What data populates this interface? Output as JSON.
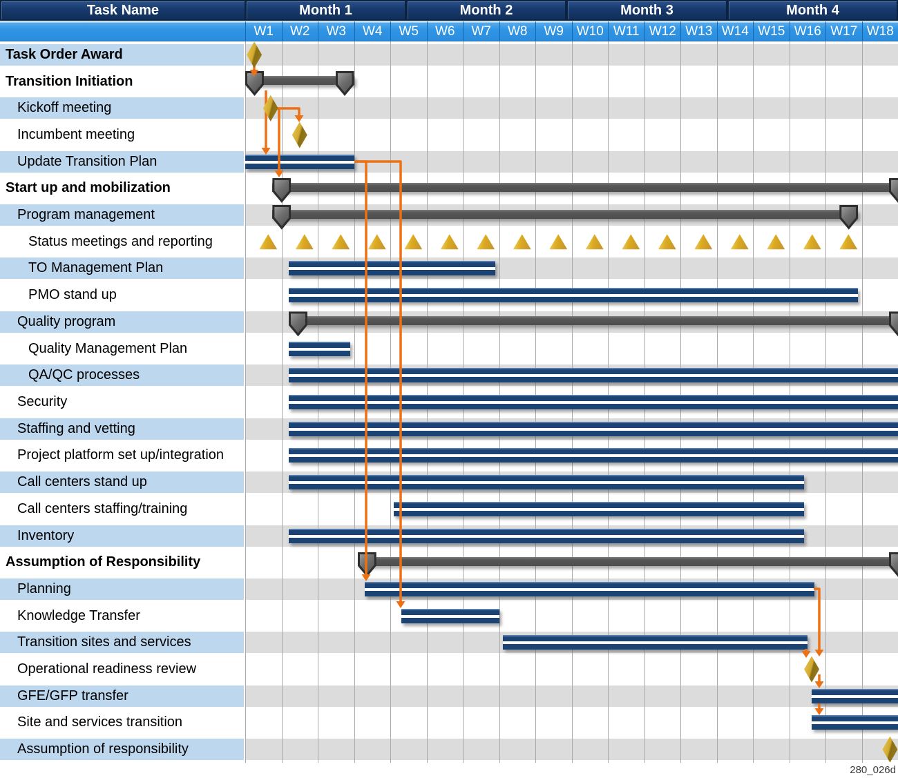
{
  "title_label": "Task Name",
  "figure_label": "280_026d",
  "header": {
    "months": [
      "Month 1",
      "Month 2",
      "Month 3",
      "Month 4"
    ],
    "weeks": [
      "W1",
      "W2",
      "W3",
      "W4",
      "W5",
      "W6",
      "W7",
      "W8",
      "W9",
      "W10",
      "W11",
      "W12",
      "W13",
      "W14",
      "W15",
      "W16",
      "W17",
      "W18"
    ]
  },
  "colors": {
    "header_navy": "#173A6D",
    "week_blue": "#3095E5",
    "name_band_blue": "#BDD7EE",
    "chart_band_gray": "#DCDCDC",
    "bar_navy": "#1B4374",
    "summary_gray": "#575757",
    "milestone_gold": "#D2A92E",
    "connector_orange": "#EC7014",
    "gridline_gray": "#A9A9A9"
  },
  "chart_data": {
    "type": "gantt",
    "time_axis": {
      "unit": "week",
      "total_weeks": 18,
      "months_span_weeks": 4.5
    },
    "tasks": [
      {
        "name": "Task Order Award",
        "level": 0,
        "bold": true,
        "shape": "milestone",
        "week": 1.25
      },
      {
        "name": "Transition Initiation",
        "level": 0,
        "bold": true,
        "shape": "summary",
        "start": 1.0,
        "end": 4.0
      },
      {
        "name": "Kickoff meeting",
        "level": 1,
        "bold": false,
        "shape": "milestone",
        "week": 1.7
      },
      {
        "name": "Incumbent meeting",
        "level": 1,
        "bold": false,
        "shape": "milestone",
        "week": 2.5
      },
      {
        "name": "Update Transition Plan",
        "level": 1,
        "bold": false,
        "shape": "bar",
        "start": 1.0,
        "end": 4.0
      },
      {
        "name": "Start up and mobilization",
        "level": 0,
        "bold": true,
        "shape": "summary",
        "start": 1.75,
        "end": 19.0
      },
      {
        "name": "Program management",
        "level": 1,
        "bold": false,
        "shape": "summary",
        "start": 1.75,
        "end": 17.9
      },
      {
        "name": "Status meetings and reporting",
        "level": 2,
        "bold": false,
        "shape": "triangles",
        "weeks": [
          1,
          2,
          3,
          4,
          5,
          6,
          7,
          8,
          9,
          10,
          11,
          12,
          13,
          14,
          15,
          16,
          17
        ]
      },
      {
        "name": "TO Management Plan",
        "level": 2,
        "bold": false,
        "shape": "bar",
        "start": 2.2,
        "end": 7.9
      },
      {
        "name": "PMO stand up",
        "level": 2,
        "bold": false,
        "shape": "bar",
        "start": 2.2,
        "end": 17.9
      },
      {
        "name": "Quality program",
        "level": 1,
        "bold": false,
        "shape": "summary",
        "start": 2.2,
        "end": 19.0
      },
      {
        "name": "Quality Management Plan",
        "level": 2,
        "bold": false,
        "shape": "bar",
        "start": 2.2,
        "end": 3.9
      },
      {
        "name": "QA/QC processes",
        "level": 2,
        "bold": false,
        "shape": "bar",
        "start": 2.2,
        "end": 19.0
      },
      {
        "name": "Security",
        "level": 1,
        "bold": false,
        "shape": "bar",
        "start": 2.2,
        "end": 19.0
      },
      {
        "name": "Staffing and vetting",
        "level": 1,
        "bold": false,
        "shape": "bar",
        "start": 2.2,
        "end": 19.0
      },
      {
        "name": "Project platform set up/integration",
        "level": 1,
        "bold": false,
        "shape": "bar",
        "start": 2.2,
        "end": 19.0
      },
      {
        "name": "Call centers stand up",
        "level": 1,
        "bold": false,
        "shape": "bar",
        "start": 2.2,
        "end": 16.4
      },
      {
        "name": "Call centers staffing/training",
        "level": 1,
        "bold": false,
        "shape": "bar",
        "start": 5.1,
        "end": 16.4
      },
      {
        "name": "Inventory",
        "level": 1,
        "bold": false,
        "shape": "bar",
        "start": 2.2,
        "end": 16.4
      },
      {
        "name": "Assumption of Responsibility",
        "level": 0,
        "bold": true,
        "shape": "summary",
        "start": 4.1,
        "end": 19.0
      },
      {
        "name": "Planning",
        "level": 1,
        "bold": false,
        "shape": "bar",
        "start": 4.3,
        "end": 16.7
      },
      {
        "name": "Knowledge Transfer",
        "level": 1,
        "bold": false,
        "shape": "bar",
        "start": 5.3,
        "end": 8.0
      },
      {
        "name": "Transition sites and services",
        "level": 1,
        "bold": false,
        "shape": "bar",
        "start": 8.1,
        "end": 16.5
      },
      {
        "name": "Operational readiness review",
        "level": 1,
        "bold": false,
        "shape": "milestone",
        "week": 16.62
      },
      {
        "name": "GFE/GFP transfer",
        "level": 1,
        "bold": false,
        "shape": "bar",
        "start": 16.62,
        "end": 19.0
      },
      {
        "name": "Site and services transition",
        "level": 1,
        "bold": false,
        "shape": "bar",
        "start": 16.62,
        "end": 19.0
      },
      {
        "name": "Assumption of responsibility",
        "level": 1,
        "bold": false,
        "shape": "milestone",
        "week": 18.78
      }
    ],
    "dependencies": [
      {
        "from": "Task Order Award",
        "to": "Transition Initiation",
        "points": [
          [
            368,
            95
          ],
          [
            368,
            101
          ]
        ]
      },
      {
        "from": "Transition Initiation",
        "to": "Update Transition Plan",
        "points": [
          [
            385,
            131
          ],
          [
            385,
            214
          ]
        ]
      },
      {
        "from": "Kickoff meeting",
        "to": "Incumbent meeting",
        "points": [
          [
            401,
            157
          ],
          [
            433,
            157
          ],
          [
            433,
            167
          ]
        ]
      },
      {
        "from": "Kickoff meeting",
        "to": "Start up and mobilization",
        "points": [
          [
            404,
            157
          ],
          [
            404,
            247
          ]
        ]
      },
      {
        "from": "Update Transition Plan",
        "to": "Planning",
        "points": [
          [
            513,
            234
          ],
          [
            530,
            234
          ],
          [
            530,
            832
          ]
        ]
      },
      {
        "from": "Update Transition Plan",
        "to": "Knowledge Transfer",
        "points": [
          [
            513,
            234
          ],
          [
            580,
            234
          ],
          [
            580,
            871
          ]
        ]
      },
      {
        "from": "Planning",
        "to": "Operational readiness review",
        "points": [
          [
            1178,
            853
          ],
          [
            1186,
            853
          ],
          [
            1186,
            941
          ]
        ]
      },
      {
        "from": "Transition sites and services",
        "to": "Operational readiness review",
        "points": [
          [
            1167,
            940
          ],
          [
            1167,
            943
          ]
        ]
      },
      {
        "from": "Operational readiness review",
        "to": "GFE/GFP transfer",
        "points": [
          [
            1186,
            977
          ],
          [
            1186,
            987
          ]
        ]
      },
      {
        "from": "Operational readiness review",
        "to": "Site and services transition",
        "points": [
          [
            1186,
            1019
          ],
          [
            1186,
            1026
          ]
        ]
      }
    ]
  }
}
